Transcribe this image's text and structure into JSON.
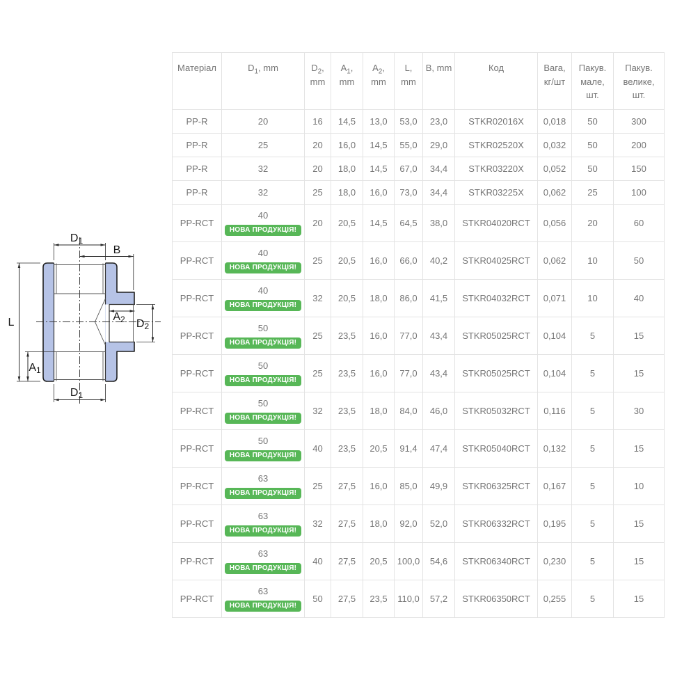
{
  "diagram": {
    "body_fill": "#b6c3e6",
    "outline_color": "#1f1f1f",
    "labels": [
      {
        "id": "d1-top",
        "main": "D",
        "sub": "1"
      },
      {
        "id": "b",
        "main": "B",
        "sub": ""
      },
      {
        "id": "l",
        "main": "L",
        "sub": ""
      },
      {
        "id": "a1",
        "main": "A",
        "sub": "1"
      },
      {
        "id": "a2",
        "main": "A",
        "sub": "2"
      },
      {
        "id": "d2",
        "main": "D",
        "sub": "2"
      },
      {
        "id": "d1-bottom",
        "main": "D",
        "sub": "1"
      }
    ]
  },
  "table": {
    "border_color": "#e3e3e3",
    "text_color": "#757575",
    "badge": {
      "label": "НОВА ПРОДУКЦІЯ!",
      "bg": "#57b757",
      "text_color": "#ffffff"
    },
    "columns": [
      {
        "id": "material",
        "label": "Матеріал"
      },
      {
        "id": "d1",
        "main": "D",
        "sub": "1",
        "rest": ", mm"
      },
      {
        "id": "d2",
        "main": "D",
        "sub": "2",
        "rest": ", mm"
      },
      {
        "id": "a1",
        "main": "A",
        "sub": "1",
        "rest": ", mm"
      },
      {
        "id": "a2",
        "main": "A",
        "sub": "2",
        "rest": ", mm"
      },
      {
        "id": "l",
        "label": "L, mm"
      },
      {
        "id": "b",
        "label": "B, mm"
      },
      {
        "id": "code",
        "label": "Код"
      },
      {
        "id": "weight",
        "label": "Вага, кг/шт"
      },
      {
        "id": "pack_small",
        "label": "Пакув. мале, шт."
      },
      {
        "id": "pack_large",
        "label": "Пакув. велике, шт."
      }
    ],
    "rows": [
      {
        "material": "PP-R",
        "d1": "20",
        "new_product": false,
        "d2": "16",
        "a1": "14,5",
        "a2": "13,0",
        "l": "53,0",
        "b": "23,0",
        "code": "STKR02016X",
        "weight": "0,018",
        "pack_small": "50",
        "pack_large": "300"
      },
      {
        "material": "PP-R",
        "d1": "25",
        "new_product": false,
        "d2": "20",
        "a1": "16,0",
        "a2": "14,5",
        "l": "55,0",
        "b": "29,0",
        "code": "STKR02520X",
        "weight": "0,032",
        "pack_small": "50",
        "pack_large": "200"
      },
      {
        "material": "PP-R",
        "d1": "32",
        "new_product": false,
        "d2": "20",
        "a1": "18,0",
        "a2": "14,5",
        "l": "67,0",
        "b": "34,4",
        "code": "STKR03220X",
        "weight": "0,052",
        "pack_small": "50",
        "pack_large": "150"
      },
      {
        "material": "PP-R",
        "d1": "32",
        "new_product": false,
        "d2": "25",
        "a1": "18,0",
        "a2": "16,0",
        "l": "73,0",
        "b": "34,4",
        "code": "STKR03225X",
        "weight": "0,062",
        "pack_small": "25",
        "pack_large": "100"
      },
      {
        "material": "PP-RCT",
        "d1": "40",
        "new_product": true,
        "d2": "20",
        "a1": "20,5",
        "a2": "14,5",
        "l": "64,5",
        "b": "38,0",
        "code": "STKR04020RCT",
        "weight": "0,056",
        "pack_small": "20",
        "pack_large": "60"
      },
      {
        "material": "PP-RCT",
        "d1": "40",
        "new_product": true,
        "d2": "25",
        "a1": "20,5",
        "a2": "16,0",
        "l": "66,0",
        "b": "40,2",
        "code": "STKR04025RCT",
        "weight": "0,062",
        "pack_small": "10",
        "pack_large": "50"
      },
      {
        "material": "PP-RCT",
        "d1": "40",
        "new_product": true,
        "d2": "32",
        "a1": "20,5",
        "a2": "18,0",
        "l": "86,0",
        "b": "41,5",
        "code": "STKR04032RCT",
        "weight": "0,071",
        "pack_small": "10",
        "pack_large": "40"
      },
      {
        "material": "PP-RCT",
        "d1": "50",
        "new_product": true,
        "d2": "25",
        "a1": "23,5",
        "a2": "16,0",
        "l": "77,0",
        "b": "43,4",
        "code": "STKR05025RCT",
        "weight": "0,104",
        "pack_small": "5",
        "pack_large": "15"
      },
      {
        "material": "PP-RCT",
        "d1": "50",
        "new_product": true,
        "d2": "25",
        "a1": "23,5",
        "a2": "16,0",
        "l": "77,0",
        "b": "43,4",
        "code": "STKR05025RCT",
        "weight": "0,104",
        "pack_small": "5",
        "pack_large": "15"
      },
      {
        "material": "PP-RCT",
        "d1": "50",
        "new_product": true,
        "d2": "32",
        "a1": "23,5",
        "a2": "18,0",
        "l": "84,0",
        "b": "46,0",
        "code": "STKR05032RCT",
        "weight": "0,116",
        "pack_small": "5",
        "pack_large": "30"
      },
      {
        "material": "PP-RCT",
        "d1": "50",
        "new_product": true,
        "d2": "40",
        "a1": "23,5",
        "a2": "20,5",
        "l": "91,4",
        "b": "47,4",
        "code": "STKR05040RCT",
        "weight": "0,132",
        "pack_small": "5",
        "pack_large": "15"
      },
      {
        "material": "PP-RCT",
        "d1": "63",
        "new_product": true,
        "d2": "25",
        "a1": "27,5",
        "a2": "16,0",
        "l": "85,0",
        "b": "49,9",
        "code": "STKR06325RCT",
        "weight": "0,167",
        "pack_small": "5",
        "pack_large": "10"
      },
      {
        "material": "PP-RCT",
        "d1": "63",
        "new_product": true,
        "d2": "32",
        "a1": "27,5",
        "a2": "18,0",
        "l": "92,0",
        "b": "52,0",
        "code": "STKR06332RCT",
        "weight": "0,195",
        "pack_small": "5",
        "pack_large": "15"
      },
      {
        "material": "PP-RCT",
        "d1": "63",
        "new_product": true,
        "d2": "40",
        "a1": "27,5",
        "a2": "20,5",
        "l": "100,0",
        "b": "54,6",
        "code": "STKR06340RCT",
        "weight": "0,230",
        "pack_small": "5",
        "pack_large": "15"
      },
      {
        "material": "PP-RCT",
        "d1": "63",
        "new_product": true,
        "d2": "50",
        "a1": "27,5",
        "a2": "23,5",
        "l": "110,0",
        "b": "57,2",
        "code": "STKR06350RCT",
        "weight": "0,255",
        "pack_small": "5",
        "pack_large": "15"
      }
    ]
  }
}
